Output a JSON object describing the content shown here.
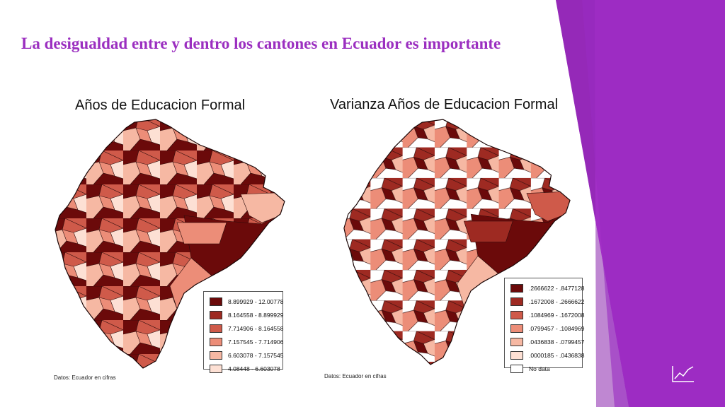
{
  "slide": {
    "title": "La desigualdad entre y dentro los cantones en Ecuador es importante",
    "accent_color": "#9b2fc0",
    "icon": "line-chart-icon"
  },
  "maps": [
    {
      "title": "Años de Educacion Formal",
      "source": "Datos: Ecuador en cifras",
      "legend": [
        {
          "label": "8.899929 - 12.00778",
          "color": "#6b0a0a"
        },
        {
          "label": "8.164558 - 8.899929",
          "color": "#9e2a22"
        },
        {
          "label": "7.714906 - 8.164558",
          "color": "#cf5a4a"
        },
        {
          "label": "7.157545 - 7.714906",
          "color": "#ec8d78"
        },
        {
          "label": "6.603078 - 7.157545",
          "color": "#f6b8a3"
        },
        {
          "label": "4.08448 - 6.603078",
          "color": "#fde0d4"
        }
      ]
    },
    {
      "title": "Varianza Años de Educacion Formal",
      "source": "Datos: Ecuador en cifras",
      "legend": [
        {
          "label": ".2666622 - .8477128",
          "color": "#6b0a0a"
        },
        {
          "label": ".1672008 - .2666622",
          "color": "#9e2a22"
        },
        {
          "label": ".1084969 - .1672008",
          "color": "#cf5a4a"
        },
        {
          "label": ".0799457 - .1084969",
          "color": "#ec8d78"
        },
        {
          "label": ".0436838 - .0799457",
          "color": "#f6b8a3"
        },
        {
          "label": ".0000185 - .0436838",
          "color": "#fde0d4"
        },
        {
          "label": "No data",
          "color": "#ffffff"
        }
      ]
    }
  ]
}
